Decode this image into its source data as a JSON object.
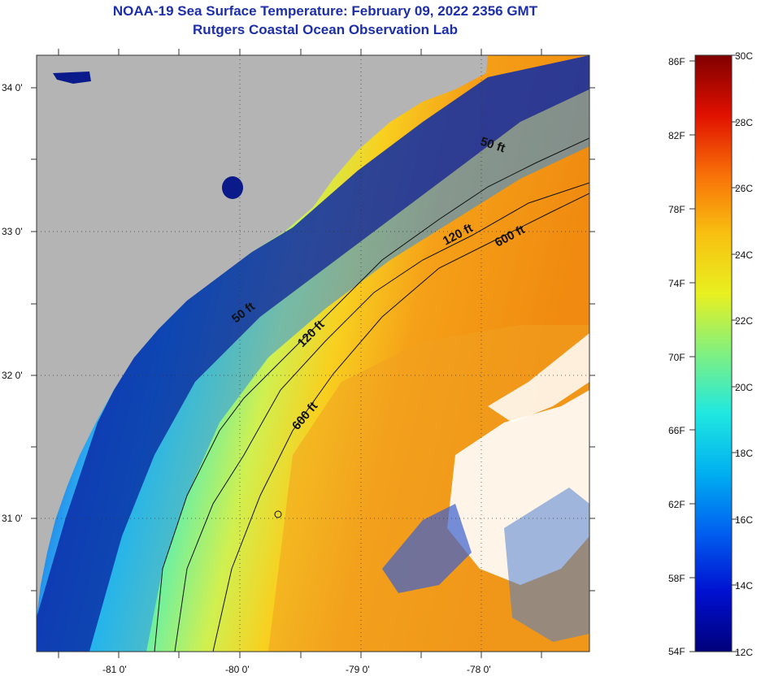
{
  "title": {
    "line1": "NOAA-19 Sea Surface Temperature:  February 09, 2022 2356 GMT",
    "line2": "Rutgers Coastal Ocean Observation Lab"
  },
  "axes": {
    "lat_labels": [
      "34 0'",
      "33 0'",
      "32 0'",
      "31 0'"
    ],
    "lon_labels": [
      "-81 0'",
      "-80 0'",
      "-79 0'",
      "-78 0'"
    ]
  },
  "contours": {
    "c50_a": "50 ft",
    "c50_b": "50 ft",
    "c120_a": "120 ft",
    "c120_b": "120 ft",
    "c600_a": "600 ft",
    "c600_b": "600 ft"
  },
  "colorbar": {
    "fahrenheit": [
      "86F",
      "82F",
      "78F",
      "74F",
      "70F",
      "66F",
      "62F",
      "58F",
      "54F"
    ],
    "celsius": [
      "30C",
      "28C",
      "26C",
      "24C",
      "22C",
      "20C",
      "18C",
      "16C",
      "14C",
      "12C"
    ]
  },
  "colors": {
    "land": "#b4b4b4",
    "cloud": "#ffffff",
    "title": "#1d2fa8"
  }
}
